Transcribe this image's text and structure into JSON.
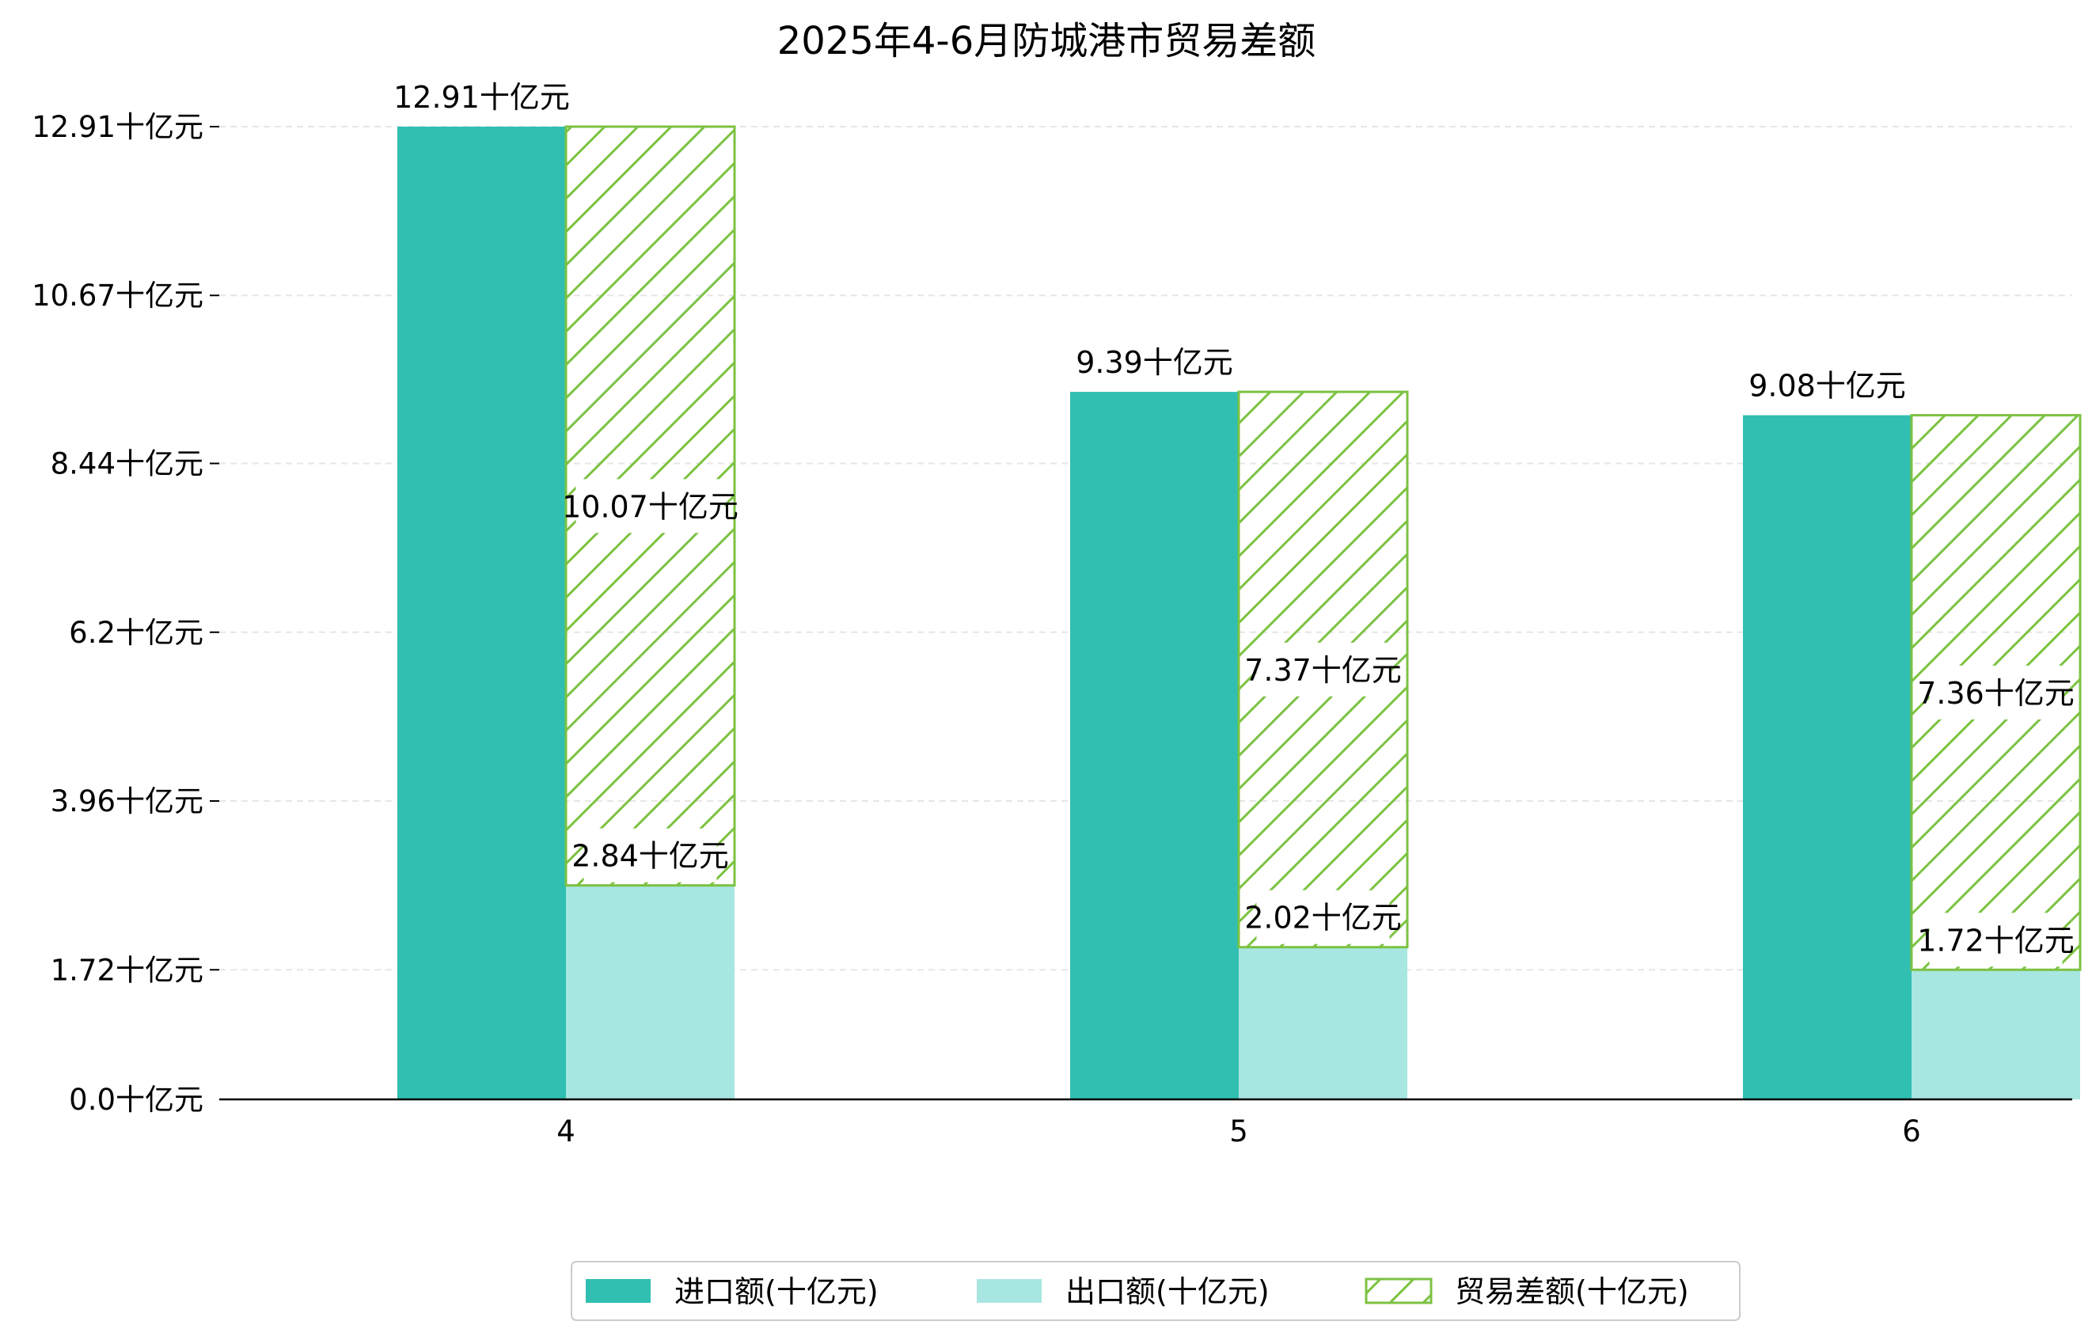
{
  "chart_data": {
    "type": "bar",
    "title": "2025年4-6月防城港市贸易差额",
    "categories": [
      "4",
      "5",
      "6"
    ],
    "series": [
      {
        "name": "进口额(十亿元)",
        "values": [
          12.91,
          9.39,
          9.08
        ],
        "color": "#30bfb0",
        "style": "solid"
      },
      {
        "name": "出口额(十亿元)",
        "values": [
          2.84,
          2.02,
          1.72
        ],
        "color": "#a8e6e1",
        "style": "solid"
      },
      {
        "name": "贸易差额(十亿元)",
        "values": [
          10.07,
          7.37,
          7.36
        ],
        "color": "#7cc242",
        "style": "hatched",
        "stacked_on": "出口额(十亿元)"
      }
    ],
    "data_labels": {
      "import": [
        "12.91十亿元",
        "9.39十亿元",
        "9.08十亿元"
      ],
      "export": [
        "2.84十亿元",
        "2.02十亿元",
        "1.72十亿元"
      ],
      "balance": [
        "10.07十亿元",
        "7.37十亿元",
        "7.36十亿元"
      ]
    },
    "yticks": [
      0.0,
      1.72,
      3.96,
      6.2,
      8.44,
      10.67,
      12.91
    ],
    "ytick_labels": [
      "0.0十亿元",
      "1.72十亿元",
      "3.96十亿元",
      "6.2十亿元",
      "8.44十亿元",
      "10.67十亿元",
      "12.91十亿元"
    ],
    "ylim": [
      0,
      12.91
    ],
    "xlabel": "",
    "ylabel": "",
    "grid": "y-dashed",
    "legend": "bottom-center"
  }
}
